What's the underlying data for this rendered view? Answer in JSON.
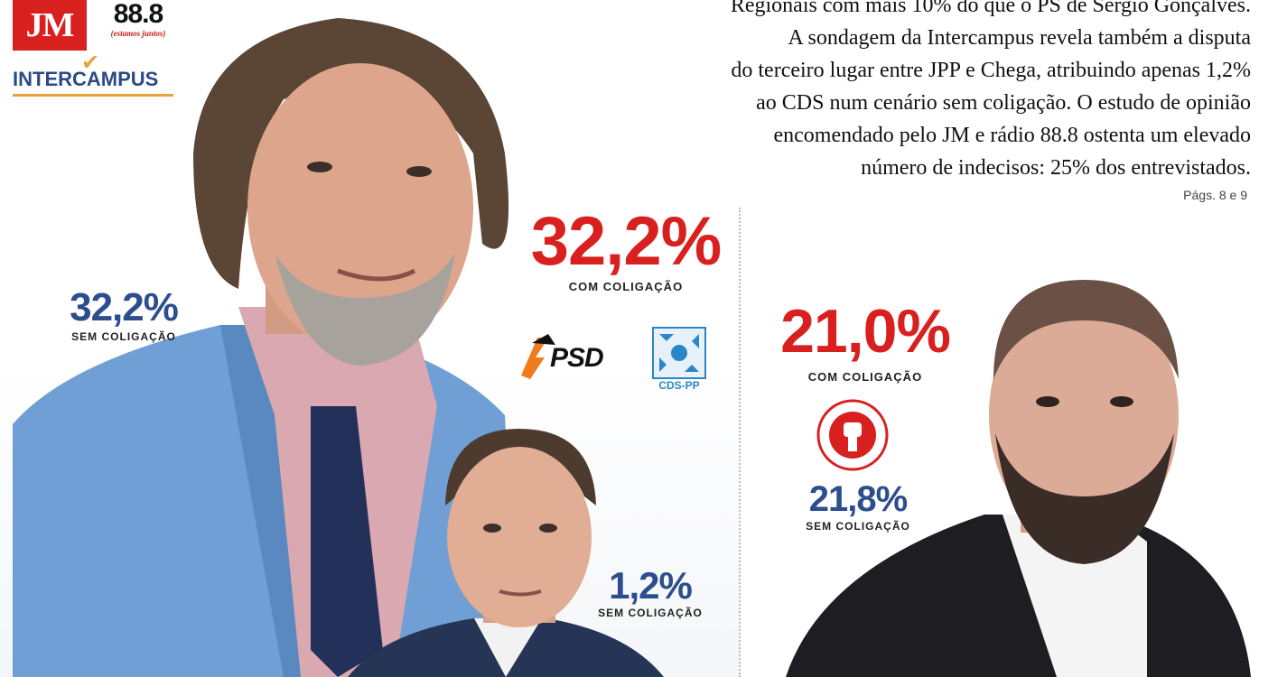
{
  "logos": {
    "jm": "JM",
    "radio_number": "88.8",
    "radio_tagline": "(estamos juntos)",
    "intercampus": "INTERCAMPUS",
    "psd": "PSD",
    "cds": "CDS-PP",
    "ps_ring": "PARTIDO SOCIALISTA"
  },
  "article": {
    "lines": [
      "Regionais com mais 10% do que o PS de Sérgio Gonçalves.",
      "A sondagem da Intercampus revela também a disputa",
      "do terceiro lugar entre JPP e Chega, atribuindo apenas 1,2%",
      "ao CDS num cenário sem coligação. O estudo de opinião",
      "encomendado pelo JM e rádio 88.8 ostenta um elevado",
      "número de indecisos: 25% dos entrevistados."
    ],
    "pages": "Págs. 8 e 9"
  },
  "results": {
    "psd_sem": {
      "value": "32,2%",
      "label": "SEM COLIGAÇÃO"
    },
    "psd_com": {
      "value": "32,2%",
      "label": "COM COLIGAÇÃO"
    },
    "cds_sem": {
      "value": "1,2%",
      "label": "SEM COLIGAÇÃO"
    },
    "ps_com": {
      "value": "21,0%",
      "label": "COM COLIGAÇÃO"
    },
    "ps_sem": {
      "value": "21,8%",
      "label": "SEM COLIGAÇÃO"
    }
  },
  "colors": {
    "red": "#d8201f",
    "blue": "#2d4e8e",
    "psd_orange": "#f07b1d",
    "cds_blue": "#2a86c8"
  }
}
